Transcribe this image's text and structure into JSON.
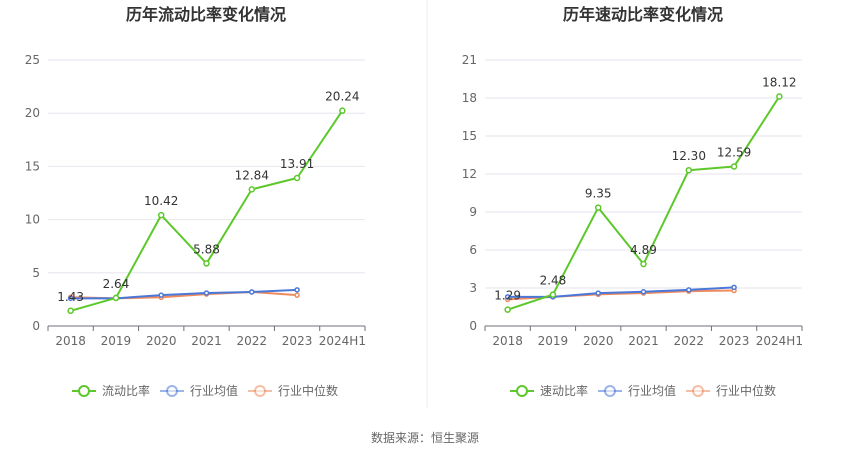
{
  "source_text": "数据来源：恒生聚源",
  "chart_data": [
    {
      "type": "line",
      "title": "历年流动比率变化情况",
      "categories": [
        "2018",
        "2019",
        "2020",
        "2021",
        "2022",
        "2023",
        "2024H1"
      ],
      "yticks": [
        "0",
        "5",
        "10",
        "15",
        "20",
        "25"
      ],
      "ylim": [
        0,
        25
      ],
      "grid": true,
      "legend_position": "bottom",
      "series": [
        {
          "name": "流动比率",
          "color": "#5cc82a",
          "values": [
            1.43,
            2.64,
            10.42,
            5.88,
            12.84,
            13.91,
            20.24
          ],
          "labels": [
            "1.43",
            "2.64",
            "10.42",
            "5.88",
            "12.84",
            "13.91",
            "20.24"
          ]
        },
        {
          "name": "行业均值",
          "color": "#4a78d8",
          "values": [
            2.6,
            2.6,
            2.9,
            3.1,
            3.2,
            3.4,
            null
          ]
        },
        {
          "name": "行业中位数",
          "color": "#f08a5d",
          "values": [
            2.7,
            2.6,
            2.7,
            3.0,
            3.2,
            2.9,
            null
          ]
        }
      ]
    },
    {
      "type": "line",
      "title": "历年速动比率变化情况",
      "categories": [
        "2018",
        "2019",
        "2020",
        "2021",
        "2022",
        "2023",
        "2024H1"
      ],
      "yticks": [
        "0",
        "3",
        "6",
        "9",
        "12",
        "15",
        "18",
        "21"
      ],
      "ylim": [
        0,
        21
      ],
      "grid": true,
      "legend_position": "bottom",
      "series": [
        {
          "name": "速动比率",
          "color": "#5cc82a",
          "values": [
            1.29,
            2.48,
            9.35,
            4.89,
            12.3,
            12.59,
            18.12
          ],
          "labels": [
            "1.29",
            "2.48",
            "9.35",
            "4.89",
            "12.30",
            "12.59",
            "18.12"
          ]
        },
        {
          "name": "行业均值",
          "color": "#4a78d8",
          "values": [
            2.3,
            2.3,
            2.6,
            2.7,
            2.85,
            3.05,
            null
          ]
        },
        {
          "name": "行业中位数",
          "color": "#f08a5d",
          "values": [
            2.1,
            2.3,
            2.5,
            2.6,
            2.75,
            2.8,
            null
          ]
        }
      ]
    }
  ]
}
